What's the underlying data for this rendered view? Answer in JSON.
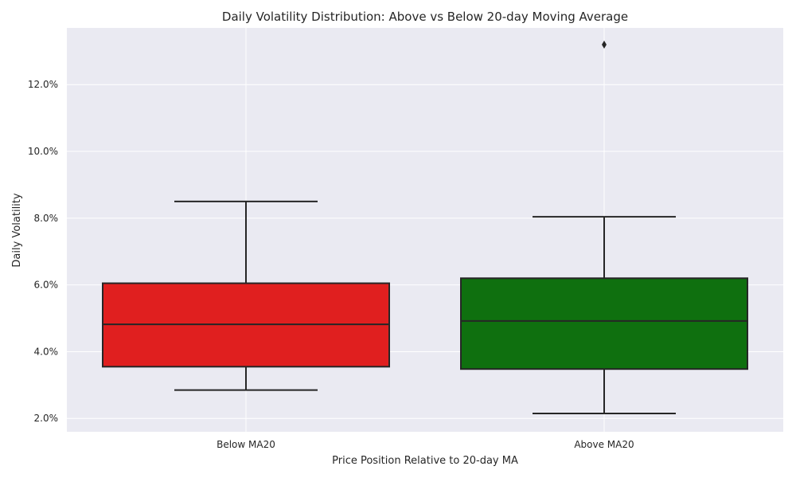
{
  "chart_data": {
    "type": "box",
    "title": "Daily Volatility Distribution: Above vs Below 20-day Moving Average",
    "xlabel": "Price Position Relative to 20-day MA",
    "ylabel": "Daily Volatility",
    "categories": [
      "Below MA20",
      "Above MA20"
    ],
    "ylim": [
      1.6,
      13.7
    ],
    "yticks": [
      2.0,
      4.0,
      6.0,
      8.0,
      10.0,
      12.0
    ],
    "ytick_labels": [
      "2.0%",
      "4.0%",
      "6.0%",
      "8.0%",
      "10.0%",
      "12.0%"
    ],
    "grid": true,
    "series": [
      {
        "category": "Below MA20",
        "whisker_low": 2.85,
        "q1": 3.55,
        "median": 4.82,
        "q3": 6.05,
        "whisker_high": 8.5,
        "outliers": [],
        "color": "#e01f1f"
      },
      {
        "category": "Above MA20",
        "whisker_low": 2.15,
        "q1": 3.48,
        "median": 4.92,
        "q3": 6.2,
        "whisker_high": 8.04,
        "outliers": [
          13.2
        ],
        "color": "#0f700f"
      }
    ],
    "colors": {
      "plot_background": "#eaeaf2",
      "grid": "#ffffff",
      "box_edge": "#262626",
      "text": "#262626"
    }
  }
}
